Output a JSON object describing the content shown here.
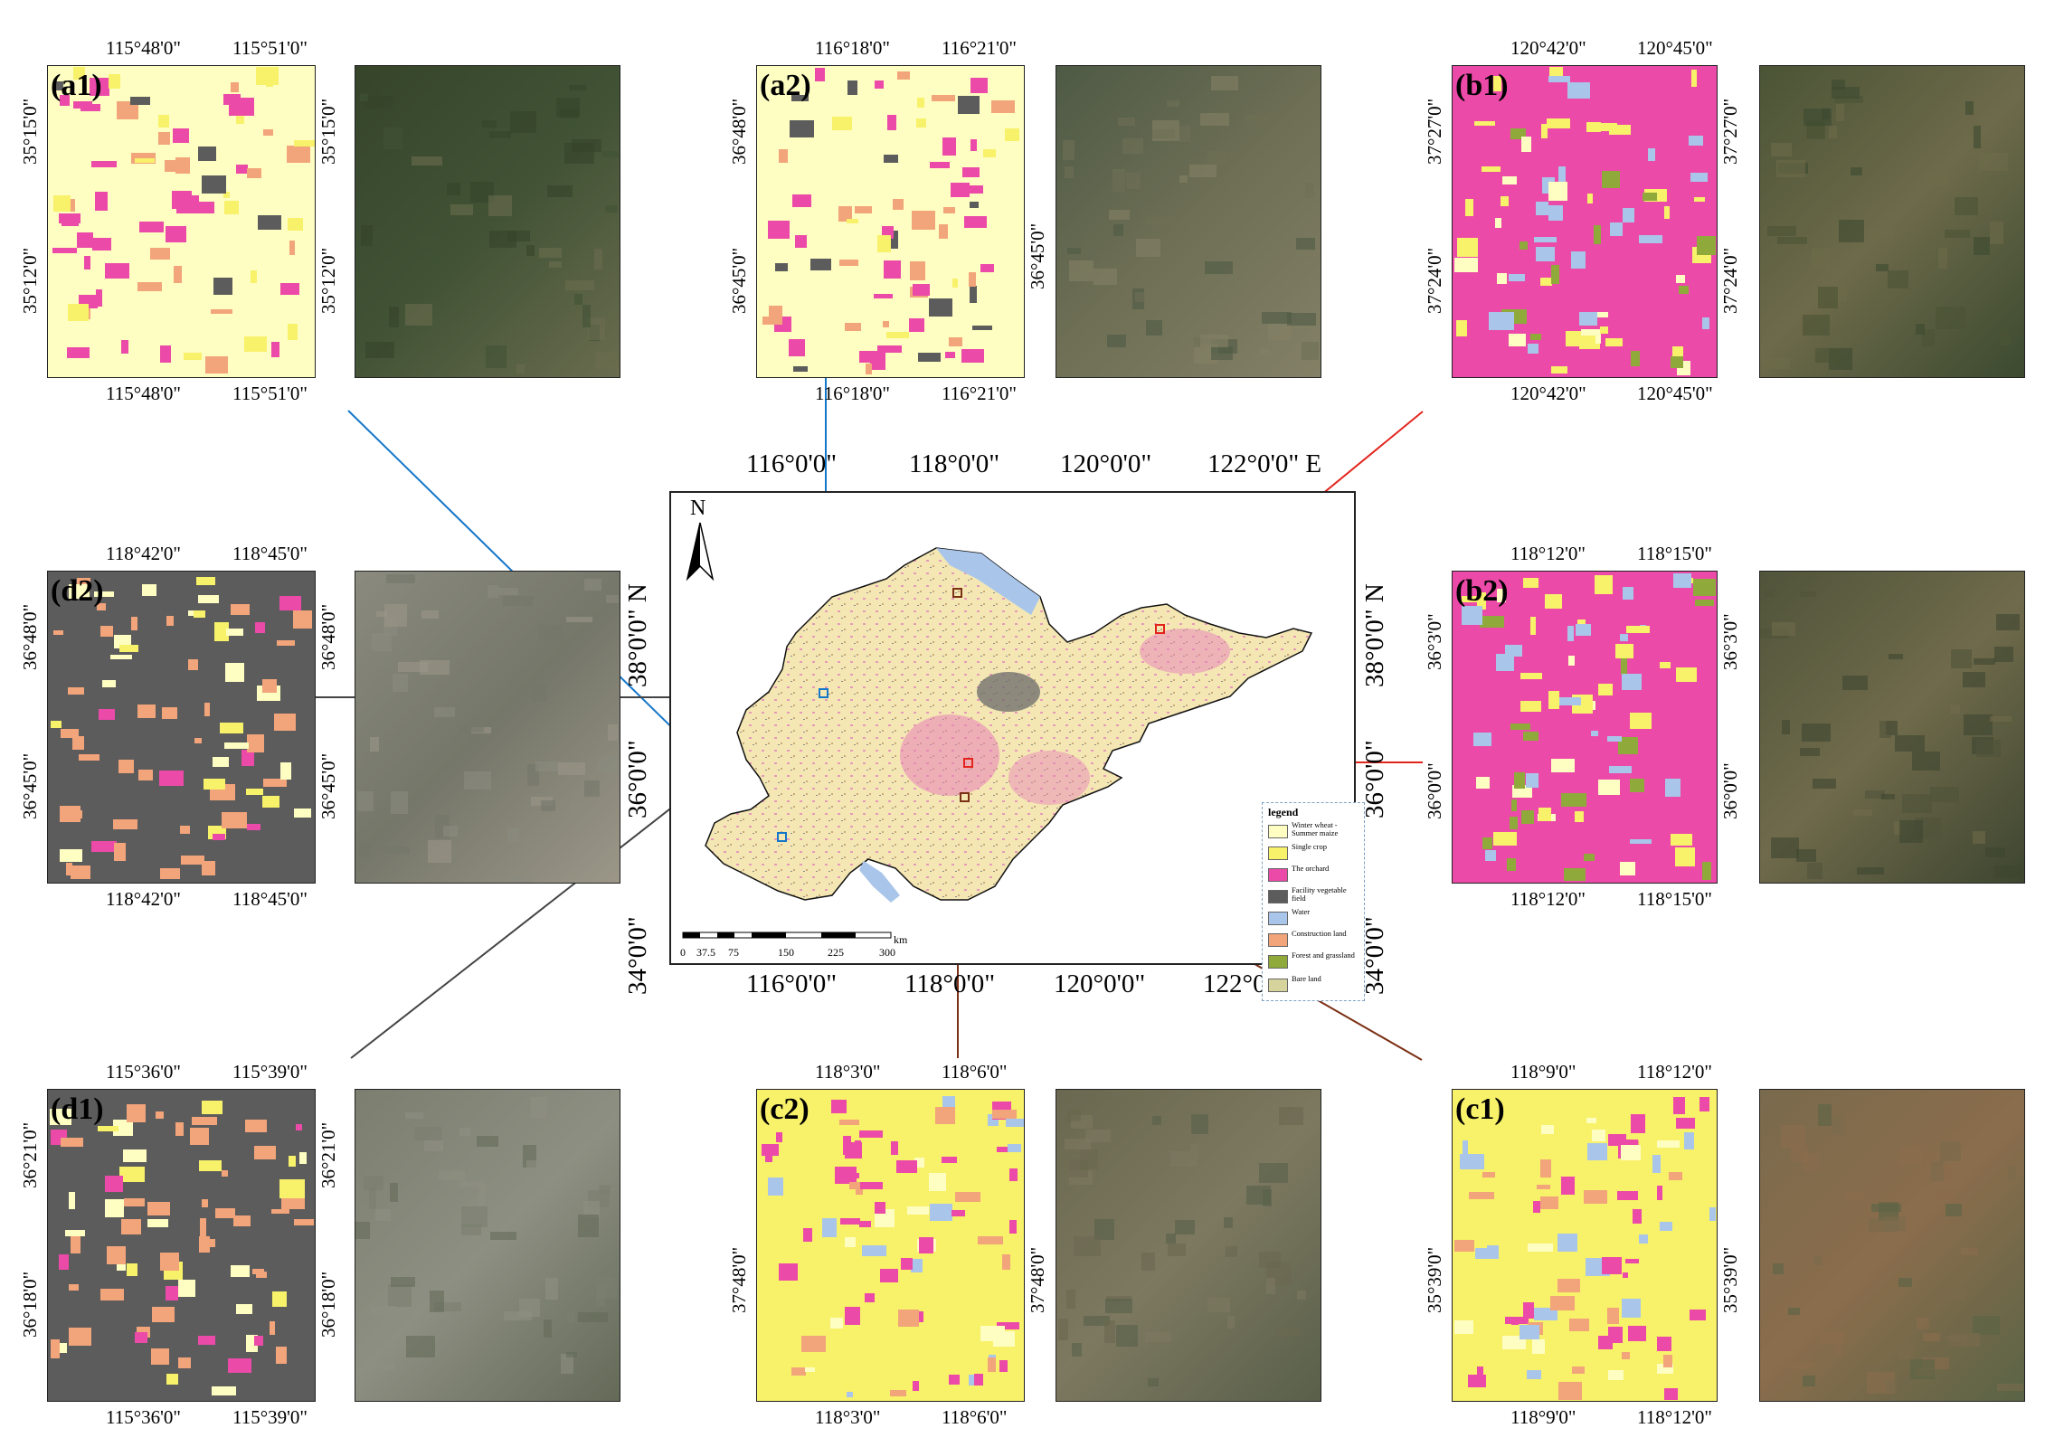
{
  "colors": {
    "winter_wheat_summer_maize": "#fefec2",
    "single_crop": "#f8f16a",
    "orchard": "#eb4aa8",
    "facility_vegetable_field": "#5c5c5c",
    "water": "#a9c6ea",
    "construction_land": "#f2a47a",
    "forest_grassland": "#8faa3a",
    "bare_land": "#d6d49c",
    "link_blue": "#1577c9",
    "link_red": "#e3241d",
    "link_brown": "#7b2f14",
    "link_gray": "#444444"
  },
  "legend": {
    "title": "legend",
    "items": [
      {
        "label": "Winter wheat - Summer maize",
        "color": "#fefec2"
      },
      {
        "label": "Single crop",
        "color": "#f8f16a"
      },
      {
        "label": "The orchard",
        "color": "#eb4aa8"
      },
      {
        "label": "Facility vegetable field",
        "color": "#5c5c5c"
      },
      {
        "label": "Water",
        "color": "#a9c6ea"
      },
      {
        "label": "Construction land",
        "color": "#f2a47a"
      },
      {
        "label": "Forest and grassland",
        "color": "#8faa3a"
      },
      {
        "label": "Bare land",
        "color": "#d6d49c"
      }
    ]
  },
  "main_map": {
    "north_label": "N",
    "top_ticks": [
      "116°0'0\"",
      "118°0'0\"",
      "120°0'0\"",
      "122°0'0\" E"
    ],
    "bottom_ticks": [
      "116°0'0\"",
      "118°0'0\"",
      "120°0'0\"",
      "122°0'0\"  E"
    ],
    "left_ticks": [
      "38°0'0\" N",
      "36°0'0\"",
      "34°0'0\""
    ],
    "right_ticks": [
      "38°0'0\" N",
      "36°0'0\"",
      "34°0'0\""
    ],
    "scale_unit": "km",
    "scale_labels": [
      "0",
      "37.5",
      "75",
      "150",
      "225",
      "300"
    ]
  },
  "panels": {
    "a1": {
      "label": "(a1)",
      "top": [
        "115°48'0\"",
        "115°51'0\""
      ],
      "bottom": [
        "115°48'0\"",
        "115°51'0\""
      ],
      "left": [
        "35°15'0\"",
        "35°12'0\""
      ],
      "right": [
        "35°15'0\"",
        "35°12'0\""
      ],
      "base": "winter_wheat_summer_maize",
      "sat": [
        "#36452a",
        "#415235",
        "#6a6c4e"
      ]
    },
    "a2": {
      "label": "(a2)",
      "top": [
        "116°18'0\"",
        "116°21'0\""
      ],
      "bottom": [
        "116°18'0\"",
        "116°21'0\""
      ],
      "left": [
        "36°48'0\"",
        "36°45'0\""
      ],
      "right": [
        "36°45'0\""
      ],
      "base": "winter_wheat_summer_maize",
      "sat": [
        "#4e5a45",
        "#6e6f55",
        "#838066"
      ]
    },
    "b1": {
      "label": "(b1)",
      "top": [
        "120°42'0\"",
        "120°45'0\""
      ],
      "bottom": [
        "120°42'0\"",
        "120°45'0\""
      ],
      "left": [
        "37°27'0\"",
        "37°24'0\""
      ],
      "right": [
        "37°27'0\"",
        "37°24'0\""
      ],
      "base": "orchard",
      "sat": [
        "#4b5436",
        "#6d6a4a",
        "#3c4a30"
      ]
    },
    "b2": {
      "label": "(b2)",
      "top": [
        "118°12'0\"",
        "118°15'0\""
      ],
      "bottom": [
        "118°12'0\"",
        "118°15'0\""
      ],
      "left": [
        "36°3'0\"",
        "36°0'0\""
      ],
      "right": [
        "36°3'0\"",
        "36°0'0\""
      ],
      "base": "orchard",
      "sat": [
        "#50543a",
        "#6f6a4b",
        "#3e4630"
      ]
    },
    "c1": {
      "label": "(c1)",
      "top": [
        "118°9'0\"",
        "118°12'0\""
      ],
      "bottom": [
        "118°9'0\"",
        "118°12'0\""
      ],
      "left": [
        "35°39'0\""
      ],
      "right": [
        "35°39'0\""
      ],
      "base": "single_crop",
      "sat": [
        "#7a6a4d",
        "#8a6d4c",
        "#5a6446"
      ]
    },
    "c2": {
      "label": "(c2)",
      "top": [
        "118°3'0\"",
        "118°6'0\""
      ],
      "bottom": [
        "118°3'0\"",
        "118°6'0\""
      ],
      "left": [
        "37°48'0\""
      ],
      "right": [
        "37°48'0\""
      ],
      "base": "single_crop",
      "sat": [
        "#6a6850",
        "#7d7860",
        "#59604a"
      ]
    },
    "d1": {
      "label": "(d1)",
      "top": [
        "115°36'0\"",
        "115°39'0\""
      ],
      "bottom": [
        "115°36'0\"",
        "115°39'0\""
      ],
      "left": [
        "36°21'0\"",
        "36°18'0\""
      ],
      "right": [
        "36°21'0\"",
        "36°18'0\""
      ],
      "base": "facility_vegetable_field",
      "sat": [
        "#7c7e70",
        "#8d8f82",
        "#646a58"
      ]
    },
    "d2": {
      "label": "(d2)",
      "top": [
        "118°42'0\"",
        "118°45'0\""
      ],
      "bottom": [
        "118°42'0\"",
        "118°45'0\""
      ],
      "left": [
        "36°48'0\"",
        "36°45'0\""
      ],
      "right": [
        "36°48'0\"",
        "36°45'0\""
      ],
      "base": "facility_vegetable_field",
      "sat": [
        "#8a8a7e",
        "#75776a",
        "#9b9688"
      ]
    }
  }
}
